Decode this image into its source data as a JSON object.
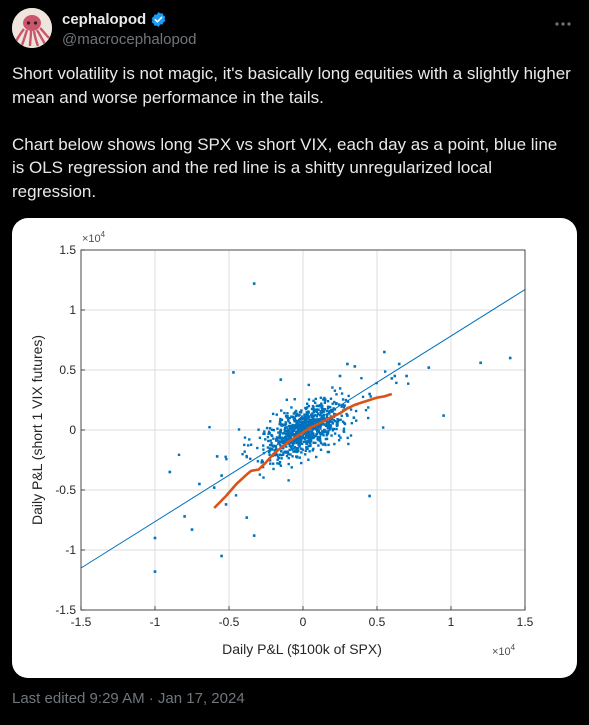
{
  "tweet": {
    "display_name": "cephalopod",
    "handle": "@macrocephalopod",
    "verified": true,
    "text": "Short volatility is not magic, it's basically long equities with a slightly higher mean and worse performance in the tails.\n\nChart below shows long SPX vs short VIX, each day as a point, blue line is OLS regression and the red line is a shitty unregularized local regression.",
    "timestamp": "Last edited 9:29 AM · Jan 17, 2024",
    "icons": {
      "more": "more-dots-icon",
      "verified": "verified-badge-icon",
      "avatar": "octopus-avatar"
    },
    "colors": {
      "background": "#000000",
      "text": "#e7e9ea",
      "muted": "#71767b",
      "verified": "#1d9bf0"
    }
  },
  "chart_data": {
    "type": "scatter",
    "xlabel": "Daily P&L ($100k of SPX)",
    "ylabel": "Daily P&L (short 1 VIX futures)",
    "x_exponent": "×10^4",
    "y_exponent": "×10^4",
    "xlim": [
      -1.5,
      1.5
    ],
    "ylim": [
      -1.5,
      1.5
    ],
    "x_ticks": [
      "-1.5",
      "-1",
      "-0.5",
      "0",
      "0.5",
      "1",
      "1.5"
    ],
    "y_ticks": [
      "1.5",
      "1",
      "0.5",
      "0",
      "-0.5",
      "-1",
      "-1.5"
    ],
    "grid": true,
    "point_color": "#0072bd",
    "ols_color": "#0072bd",
    "local_color": "#d95319",
    "ols_line": {
      "x": [
        -1.5,
        1.5
      ],
      "y": [
        -1.15,
        1.17
      ]
    },
    "local_regression": {
      "x": [
        -0.6,
        -0.52,
        -0.45,
        -0.38,
        -0.35,
        -0.3,
        -0.25,
        -0.2,
        -0.15,
        -0.1,
        -0.05,
        0,
        0.05,
        0.1,
        0.15,
        0.2,
        0.25,
        0.3,
        0.35,
        0.4,
        0.45,
        0.5,
        0.55,
        0.6
      ],
      "y": [
        -0.65,
        -0.55,
        -0.45,
        -0.37,
        -0.34,
        -0.33,
        -0.27,
        -0.2,
        -0.15,
        -0.1,
        -0.06,
        -0.02,
        0.02,
        0.05,
        0.08,
        0.11,
        0.14,
        0.18,
        0.21,
        0.23,
        0.25,
        0.27,
        0.28,
        0.3
      ]
    },
    "outliers": [
      [
        -0.33,
        1.22
      ],
      [
        -0.47,
        0.48
      ],
      [
        -0.9,
        -0.35
      ],
      [
        -1.0,
        -0.9
      ],
      [
        -1.0,
        -1.18
      ],
      [
        -0.58,
        -0.22
      ],
      [
        -0.55,
        -0.38
      ],
      [
        -0.8,
        -0.72
      ],
      [
        -0.75,
        -0.83
      ],
      [
        -0.6,
        -0.48
      ],
      [
        -0.52,
        -0.62
      ],
      [
        -0.38,
        -0.73
      ],
      [
        -0.33,
        -0.88
      ],
      [
        -0.55,
        -1.05
      ],
      [
        0.3,
        0.12
      ],
      [
        0.35,
        0.53
      ],
      [
        0.45,
        0.3
      ],
      [
        0.6,
        0.43
      ],
      [
        0.62,
        0.45
      ],
      [
        0.65,
        0.55
      ],
      [
        0.7,
        0.45
      ],
      [
        0.55,
        0.65
      ],
      [
        0.85,
        0.52
      ],
      [
        0.95,
        0.12
      ],
      [
        1.2,
        0.56
      ],
      [
        1.4,
        0.6
      ],
      [
        0.45,
        -0.55
      ],
      [
        0.3,
        0.55
      ],
      [
        0.25,
        0.45
      ],
      [
        -0.15,
        0.42
      ],
      [
        -0.7,
        -0.45
      ]
    ],
    "cloud": {
      "count": 900,
      "slope": 0.5,
      "x_sd": 0.13,
      "y_sd": 0.09
    }
  }
}
